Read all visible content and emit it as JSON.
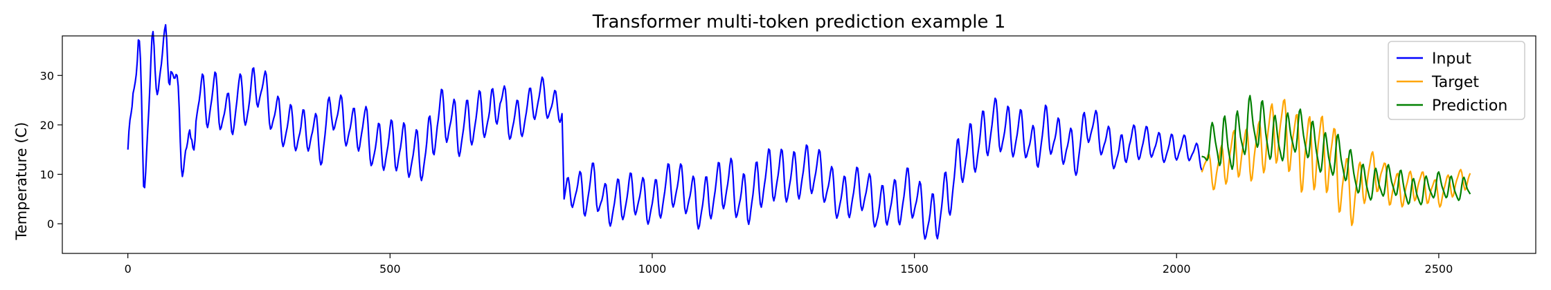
{
  "chart_data": {
    "type": "line",
    "title": "Transformer multi-token prediction example 1",
    "xlabel": "",
    "ylabel": "Temperature (C)",
    "xlim": [
      -125,
      2685
    ],
    "ylim": [
      -6,
      38
    ],
    "xticks": [
      0,
      500,
      1000,
      1500,
      2000,
      2500
    ],
    "yticks": [
      0,
      10,
      20,
      30
    ],
    "grid": false,
    "legend": "upper-right",
    "series": [
      {
        "name": "Input",
        "color": "#0000ff",
        "x_start": 0,
        "x_end": 2048,
        "anchors": [
          [
            0,
            15
          ],
          [
            10,
            31
          ],
          [
            20,
            33
          ],
          [
            30,
            18
          ],
          [
            40,
            25
          ],
          [
            55,
            34
          ],
          [
            70,
            27
          ],
          [
            82,
            36
          ],
          [
            95,
            20
          ],
          [
            110,
            19
          ],
          [
            120,
            13
          ],
          [
            130,
            26
          ],
          [
            150,
            23
          ],
          [
            170,
            24
          ],
          [
            190,
            22
          ],
          [
            210,
            27
          ],
          [
            230,
            24
          ],
          [
            250,
            27
          ],
          [
            270,
            24
          ],
          [
            290,
            22
          ],
          [
            310,
            20
          ],
          [
            330,
            17
          ],
          [
            350,
            18
          ],
          [
            370,
            17
          ],
          [
            390,
            25
          ],
          [
            410,
            20
          ],
          [
            430,
            17
          ],
          [
            450,
            20
          ],
          [
            470,
            17
          ],
          [
            490,
            16
          ],
          [
            510,
            14
          ],
          [
            530,
            14
          ],
          [
            550,
            15
          ],
          [
            570,
            16
          ],
          [
            590,
            20
          ],
          [
            610,
            20
          ],
          [
            630,
            19
          ],
          [
            650,
            22
          ],
          [
            670,
            22
          ],
          [
            690,
            20
          ],
          [
            710,
            25
          ],
          [
            730,
            22
          ],
          [
            750,
            22
          ],
          [
            770,
            23
          ],
          [
            790,
            25
          ],
          [
            810,
            24
          ],
          [
            828,
            25
          ],
          [
            832,
            6
          ],
          [
            850,
            7
          ],
          [
            870,
            4
          ],
          [
            890,
            8
          ],
          [
            910,
            5
          ],
          [
            930,
            5
          ],
          [
            950,
            4
          ],
          [
            970,
            5
          ],
          [
            990,
            5
          ],
          [
            1010,
            6
          ],
          [
            1030,
            7
          ],
          [
            1050,
            6
          ],
          [
            1070,
            6
          ],
          [
            1090,
            5
          ],
          [
            1110,
            6
          ],
          [
            1130,
            6
          ],
          [
            1150,
            7
          ],
          [
            1170,
            6
          ],
          [
            1190,
            7
          ],
          [
            1210,
            8
          ],
          [
            1230,
            8
          ],
          [
            1250,
            10
          ],
          [
            1270,
            11
          ],
          [
            1290,
            11
          ],
          [
            1310,
            9
          ],
          [
            1330,
            8
          ],
          [
            1350,
            7
          ],
          [
            1370,
            6
          ],
          [
            1390,
            6
          ],
          [
            1410,
            5
          ],
          [
            1430,
            3
          ],
          [
            1450,
            6
          ],
          [
            1470,
            4
          ],
          [
            1490,
            5
          ],
          [
            1510,
            3
          ],
          [
            1530,
            2
          ],
          [
            1550,
            4
          ],
          [
            1570,
            6
          ],
          [
            1590,
            12
          ],
          [
            1610,
            16
          ],
          [
            1630,
            19
          ],
          [
            1650,
            20
          ],
          [
            1670,
            17
          ],
          [
            1690,
            18
          ],
          [
            1710,
            20
          ],
          [
            1730,
            15
          ],
          [
            1750,
            18
          ],
          [
            1770,
            16
          ],
          [
            1790,
            17
          ],
          [
            1810,
            15
          ],
          [
            1830,
            20
          ],
          [
            1850,
            17
          ],
          [
            1870,
            16
          ],
          [
            1890,
            15
          ],
          [
            1910,
            17
          ],
          [
            1930,
            15
          ],
          [
            1950,
            16
          ],
          [
            1970,
            16
          ],
          [
            1990,
            16
          ],
          [
            2010,
            15
          ],
          [
            2030,
            14
          ],
          [
            2048,
            13
          ]
        ],
        "amps": [
          [
            0,
            0
          ],
          [
            20,
            9
          ],
          [
            100,
            8
          ],
          [
            130,
            5
          ],
          [
            330,
            4
          ],
          [
            600,
            5
          ],
          [
            830,
            3
          ],
          [
            870,
            4
          ],
          [
            1000,
            4
          ],
          [
            1200,
            5
          ],
          [
            1400,
            4
          ],
          [
            1580,
            5
          ],
          [
            1800,
            4
          ],
          [
            2048,
            2
          ]
        ],
        "period": 24,
        "phase": 2.2
      },
      {
        "name": "Target",
        "color": "#ffa500",
        "x_start": 2048,
        "x_end": 2560,
        "anchors": [
          [
            2048,
            13
          ],
          [
            2080,
            11
          ],
          [
            2100,
            12
          ],
          [
            2130,
            15
          ],
          [
            2160,
            17
          ],
          [
            2190,
            17
          ],
          [
            2220,
            18
          ],
          [
            2250,
            16
          ],
          [
            2280,
            12
          ],
          [
            2300,
            12
          ],
          [
            2320,
            10
          ],
          [
            2340,
            7
          ],
          [
            2360,
            8
          ],
          [
            2380,
            10
          ],
          [
            2400,
            9
          ],
          [
            2420,
            8
          ],
          [
            2440,
            7
          ],
          [
            2460,
            7
          ],
          [
            2480,
            7
          ],
          [
            2500,
            7
          ],
          [
            2520,
            8
          ],
          [
            2540,
            8
          ],
          [
            2560,
            9
          ]
        ],
        "amps": [
          [
            2048,
            2
          ],
          [
            2080,
            4
          ],
          [
            2150,
            5
          ],
          [
            2240,
            7
          ],
          [
            2300,
            7
          ],
          [
            2330,
            6
          ],
          [
            2360,
            4
          ],
          [
            2440,
            3
          ],
          [
            2560,
            2
          ]
        ],
        "period": 24,
        "phase": 2.7
      },
      {
        "name": "Prediction",
        "color": "#008000",
        "x_start": 2048,
        "x_end": 2560,
        "anchors": [
          [
            2048,
            13
          ],
          [
            2080,
            17
          ],
          [
            2120,
            18
          ],
          [
            2160,
            19
          ],
          [
            2200,
            18
          ],
          [
            2240,
            17
          ],
          [
            2270,
            16
          ],
          [
            2300,
            14
          ],
          [
            2330,
            10
          ],
          [
            2360,
            9
          ],
          [
            2400,
            8
          ],
          [
            2440,
            7
          ],
          [
            2480,
            7
          ],
          [
            2520,
            7
          ],
          [
            2560,
            8
          ]
        ],
        "amps": [
          [
            2048,
            1
          ],
          [
            2080,
            5
          ],
          [
            2140,
            5
          ],
          [
            2220,
            4
          ],
          [
            2300,
            4
          ],
          [
            2360,
            3
          ],
          [
            2560,
            2
          ]
        ],
        "period": 24,
        "phase": 0.4
      }
    ]
  }
}
